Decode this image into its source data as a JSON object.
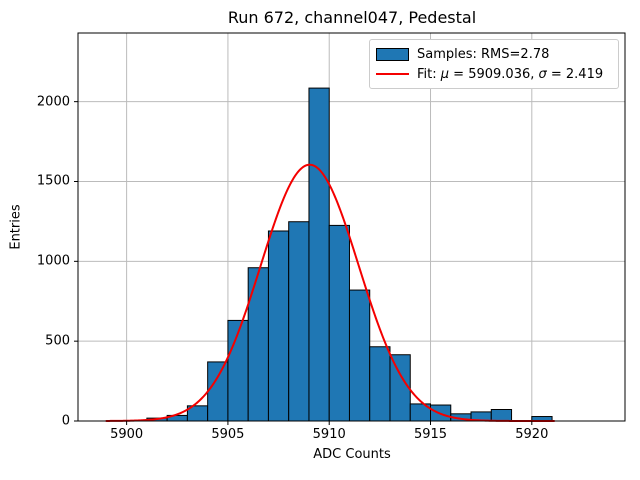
{
  "chart_data": {
    "type": "bar",
    "subtype": "histogram_with_gaussian_fit",
    "title": "Run 672, channel047, Pedestal",
    "xlabel": "ADC Counts",
    "ylabel": "Entries",
    "xlim": [
      5897.6,
      5924.6
    ],
    "ylim": [
      0,
      2430
    ],
    "xticks": [
      5900,
      5905,
      5910,
      5915,
      5920
    ],
    "yticks": [
      0,
      500,
      1000,
      1500,
      2000
    ],
    "grid": true,
    "legend_position": "upper right",
    "colors": {
      "bar_fill": "#1f77b4",
      "bar_edge": "#000000",
      "fit_line": "#f40000",
      "grid_line": "#bbbbbb",
      "axes_frame": "#000000",
      "background": "#ffffff"
    },
    "histogram": {
      "bin_width": 1,
      "bin_left_edges": [
        5901,
        5902,
        5903,
        5904,
        5905,
        5906,
        5907,
        5908,
        5909,
        5910,
        5911,
        5912,
        5913,
        5914,
        5915,
        5916,
        5917,
        5918,
        5919,
        5920
      ],
      "counts": [
        18,
        35,
        95,
        370,
        630,
        960,
        1190,
        1248,
        2085,
        1225,
        820,
        465,
        415,
        107,
        100,
        45,
        57,
        72,
        0,
        28
      ]
    },
    "fit": {
      "shape": "gaussian",
      "mu": 5909.036,
      "sigma": 2.419,
      "amplitude": 1605,
      "x_start": 5899.0,
      "x_end": 5921.1,
      "line_width": 2
    },
    "legend": {
      "samples_label": "Samples: RMS=2.78",
      "fit_prefix": "Fit: ",
      "mu_symbol": "μ",
      "mu_value_text": " = 5909.036, ",
      "sigma_symbol": "σ",
      "sigma_value_text": " = 2.419"
    }
  }
}
